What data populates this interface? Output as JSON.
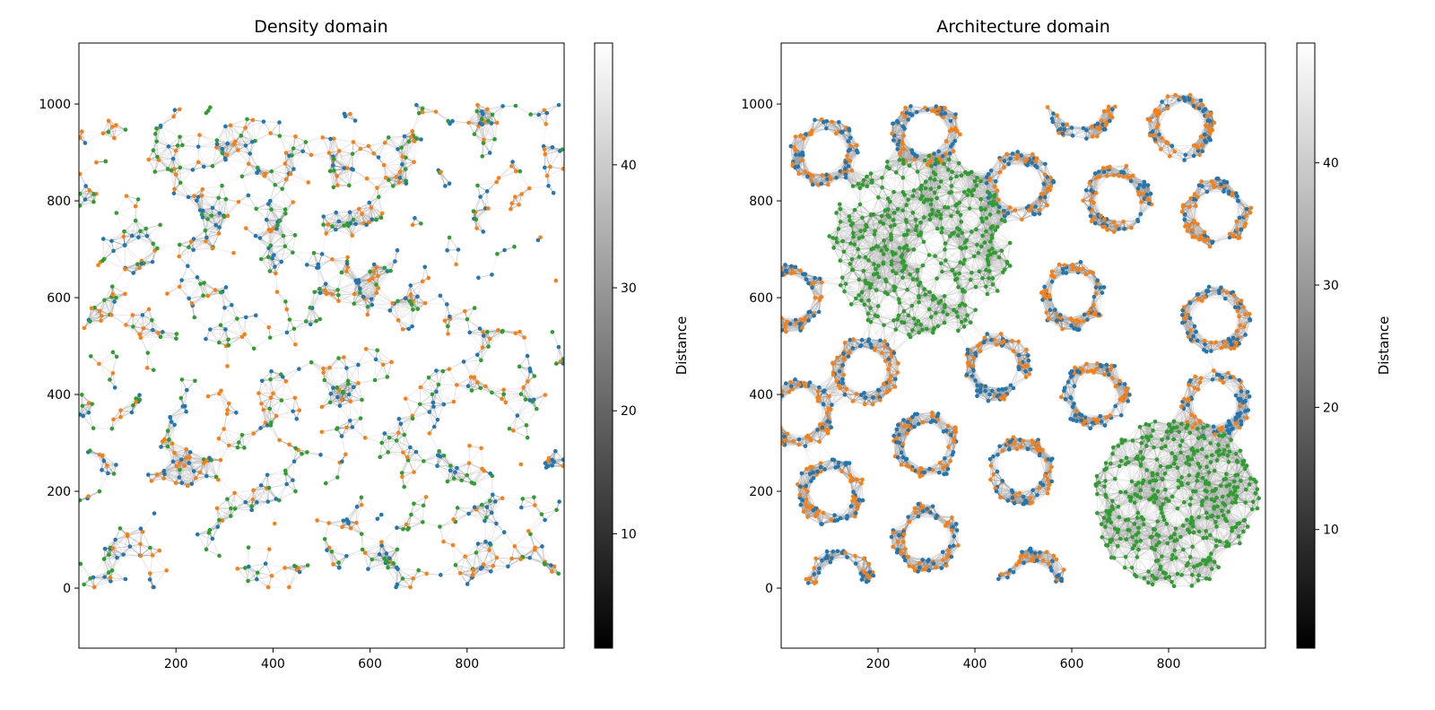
{
  "chart_data": [
    {
      "type": "scatter",
      "subtype": "network-graph",
      "title": "Density domain",
      "xlim": [
        0,
        1000
      ],
      "ylim": [
        -124,
        1126
      ],
      "xticks": [
        200,
        400,
        600,
        800
      ],
      "yticks": [
        0,
        200,
        400,
        600,
        800,
        1000
      ],
      "grid": false,
      "node_colors": {
        "class_a": "#1f77b4",
        "class_b": "#ff7f0e",
        "class_c": "#2ca02c"
      },
      "node_layout": "uniform random nodes over [0,1000] x [0,1000], three classes mixed",
      "node_count": 1100,
      "edge_max_distance": 50,
      "colorbar": {
        "label": "Distance",
        "cmap": "gray",
        "range": [
          0.7,
          49.9
        ],
        "ticks": [
          10,
          20,
          30,
          40
        ]
      }
    },
    {
      "type": "scatter",
      "subtype": "network-graph",
      "title": "Architecture domain",
      "xlim": [
        0,
        1000
      ],
      "ylim": [
        -124,
        1126
      ],
      "xticks": [
        200,
        400,
        600,
        800
      ],
      "yticks": [
        0,
        200,
        400,
        600,
        800,
        1000
      ],
      "grid": false,
      "node_colors": {
        "class_a": "#1f77b4",
        "class_b": "#ff7f0e",
        "class_c": "#2ca02c"
      },
      "rings": [
        {
          "x": 90,
          "y": 900,
          "shape": "ring"
        },
        {
          "x": 299,
          "y": 941,
          "shape": "ring"
        },
        {
          "x": 620,
          "y": 995,
          "shape": "lower-arc"
        },
        {
          "x": 827,
          "y": 955,
          "shape": "ring"
        },
        {
          "x": 491,
          "y": 831,
          "shape": "ring"
        },
        {
          "x": 694,
          "y": 803,
          "shape": "ring"
        },
        {
          "x": 899,
          "y": 776,
          "shape": "ring"
        },
        {
          "x": 20,
          "y": 600,
          "shape": "ring"
        },
        {
          "x": 600,
          "y": 604,
          "shape": "ring"
        },
        {
          "x": 897,
          "y": 554,
          "shape": "ring"
        },
        {
          "x": 445,
          "y": 456,
          "shape": "ring"
        },
        {
          "x": 174,
          "y": 450,
          "shape": "ring"
        },
        {
          "x": 648,
          "y": 400,
          "shape": "ring"
        },
        {
          "x": 897,
          "y": 381,
          "shape": "ring"
        },
        {
          "x": 39,
          "y": 360,
          "shape": "ring"
        },
        {
          "x": 299,
          "y": 294,
          "shape": "ring"
        },
        {
          "x": 497,
          "y": 243,
          "shape": "ring"
        },
        {
          "x": 103,
          "y": 200,
          "shape": "ring"
        },
        {
          "x": 299,
          "y": 104,
          "shape": "ring"
        },
        {
          "x": 122,
          "y": 10,
          "shape": "upper-arc"
        },
        {
          "x": 519,
          "y": 10,
          "shape": "upper-arc"
        }
      ],
      "ring_radius": [
        45,
        72
      ],
      "blobs": [
        {
          "x": 288,
          "y": 705,
          "radius": 190,
          "class": "class_c"
        },
        {
          "x": 814,
          "y": 175,
          "radius": 175,
          "class": "class_c"
        }
      ],
      "edge_max_distance": 50,
      "colorbar": {
        "label": "Distance",
        "cmap": "gray",
        "range": [
          0.3,
          49.8
        ],
        "ticks": [
          10,
          20,
          30,
          40
        ]
      }
    }
  ]
}
